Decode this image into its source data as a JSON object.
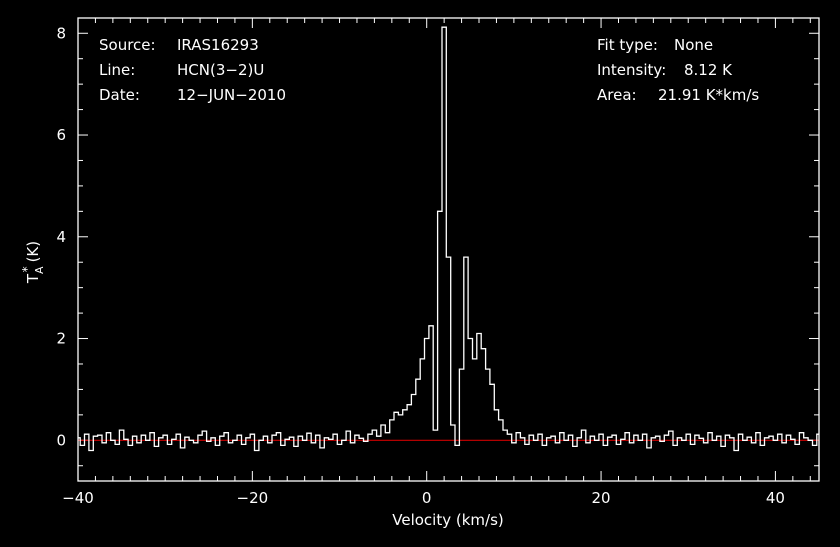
{
  "header": {
    "source_label": "Source:",
    "source_value": "IRAS16293",
    "line_label": "Line:",
    "line_value": "HCN(3−2)U",
    "date_label": "Date:",
    "date_value": "12−JUN−2010",
    "fit_label": "Fit type:",
    "fit_value": "None",
    "intensity_label": "Intensity:",
    "intensity_value": "8.12 K",
    "area_label": "Area:",
    "area_value": "21.91 K*km/s"
  },
  "colors": {
    "background": "#000000",
    "axes": "#ffffff",
    "spectrum": "#ffffff",
    "baseline": "#cc0000"
  },
  "chart_data": {
    "type": "line",
    "xlabel": "Velocity (km/s)",
    "ylabel_main": "T",
    "ylabel_sub": "A",
    "ylabel_sup": "*",
    "ylabel_unit": "(K)",
    "xlim": [
      -40,
      45
    ],
    "ylim": [
      -0.8,
      8.3
    ],
    "xticks": [
      -40,
      -20,
      0,
      20,
      40
    ],
    "xtick_labels": [
      "−40",
      "−20",
      "0",
      "20",
      "40"
    ],
    "yticks": [
      0,
      2,
      4,
      6,
      8
    ],
    "ytick_labels": [
      "0",
      "2",
      "4",
      "6",
      "8"
    ],
    "baseline_y": 0,
    "grid": false,
    "series": [
      {
        "x": [
          -40,
          -39.5,
          -39,
          -38.5,
          -38,
          -37.5,
          -37,
          -36.5,
          -36,
          -35.5,
          -35,
          -34.5,
          -34,
          -33.5,
          -33,
          -32.5,
          -32,
          -31.5,
          -31,
          -30.5,
          -30,
          -29.5,
          -29,
          -28.5,
          -28,
          -27.5,
          -27,
          -26.5,
          -26,
          -25.5,
          -25,
          -24.5,
          -24,
          -23.5,
          -23,
          -22.5,
          -22,
          -21.5,
          -21,
          -20.5,
          -20,
          -19.5,
          -19,
          -18.5,
          -18,
          -17.5,
          -17,
          -16.5,
          -16,
          -15.5,
          -15,
          -14.5,
          -14,
          -13.5,
          -13,
          -12.5,
          -12,
          -11.5,
          -11,
          -10.5,
          -10,
          -9.5,
          -9,
          -8.5,
          -8,
          -7.5,
          -7,
          -6.5,
          -6,
          -5.5,
          -5,
          -4.5,
          -4,
          -3.5,
          -3,
          -2.5,
          -2,
          -1.5,
          -1,
          -0.5,
          0,
          0.5,
          1,
          1.5,
          2,
          2.5,
          3,
          3.5,
          4,
          4.5,
          5,
          5.5,
          6,
          6.5,
          7,
          7.5,
          8,
          8.5,
          9,
          9.5,
          10,
          10.5,
          11,
          11.5,
          12,
          12.5,
          13,
          13.5,
          14,
          14.5,
          15,
          15.5,
          16,
          16.5,
          17,
          17.5,
          18,
          18.5,
          19,
          19.5,
          20,
          20.5,
          21,
          21.5,
          22,
          22.5,
          23,
          23.5,
          24,
          24.5,
          25,
          25.5,
          26,
          26.5,
          27,
          27.5,
          28,
          28.5,
          29,
          29.5,
          30,
          30.5,
          31,
          31.5,
          32,
          32.5,
          33,
          33.5,
          34,
          34.5,
          35,
          35.5,
          36,
          36.5,
          37,
          37.5,
          38,
          38.5,
          39,
          39.5,
          40,
          40.5,
          41,
          41.5,
          42,
          42.5,
          43,
          43.5,
          44,
          44.5,
          45
        ],
        "y": [
          0.05,
          -0.1,
          0.12,
          -0.2,
          0.08,
          0.1,
          -0.05,
          0.15,
          0.0,
          -0.08,
          0.2,
          0.02,
          -0.1,
          0.08,
          -0.05,
          0.1,
          0.0,
          0.15,
          -0.12,
          0.05,
          0.1,
          -0.08,
          0.02,
          0.12,
          -0.15,
          0.06,
          0.0,
          -0.05,
          0.1,
          0.18,
          -0.02,
          0.05,
          -0.1,
          0.08,
          0.15,
          -0.05,
          0.0,
          0.1,
          -0.08,
          0.05,
          0.12,
          -0.2,
          0.0,
          0.08,
          -0.05,
          0.1,
          0.15,
          -0.1,
          0.02,
          0.06,
          -0.12,
          0.08,
          0.0,
          0.14,
          -0.05,
          0.1,
          -0.15,
          0.05,
          0.02,
          0.12,
          -0.08,
          0.0,
          0.18,
          -0.05,
          0.1,
          0.04,
          -0.02,
          0.12,
          0.2,
          0.08,
          0.3,
          0.15,
          0.4,
          0.55,
          0.5,
          0.6,
          0.7,
          0.9,
          1.2,
          1.6,
          2.0,
          2.25,
          0.2,
          4.5,
          8.12,
          3.6,
          0.3,
          -0.1,
          1.4,
          3.6,
          2.0,
          1.6,
          2.1,
          1.8,
          1.4,
          1.1,
          0.6,
          0.4,
          0.2,
          0.12,
          -0.05,
          0.15,
          0.05,
          -0.08,
          0.1,
          0.0,
          0.12,
          -0.1,
          0.05,
          0.08,
          -0.05,
          0.15,
          0.0,
          0.1,
          -0.12,
          0.05,
          0.2,
          -0.05,
          0.08,
          0.0,
          0.12,
          -0.1,
          0.06,
          0.1,
          -0.08,
          0.02,
          0.15,
          -0.05,
          0.1,
          0.0,
          0.12,
          -0.15,
          0.05,
          0.08,
          -0.02,
          0.1,
          0.18,
          -0.1,
          0.05,
          0.0,
          0.12,
          -0.08,
          0.1,
          0.04,
          -0.05,
          0.15,
          0.0,
          0.08,
          -0.12,
          0.1,
          0.05,
          -0.2,
          0.12,
          0.0,
          0.06,
          -0.05,
          0.15,
          -0.1,
          0.05,
          0.08,
          0.0,
          0.12,
          -0.05,
          0.1,
          0.02,
          -0.08,
          0.15,
          0.05,
          0.0,
          -0.1,
          0.12
        ]
      }
    ]
  }
}
